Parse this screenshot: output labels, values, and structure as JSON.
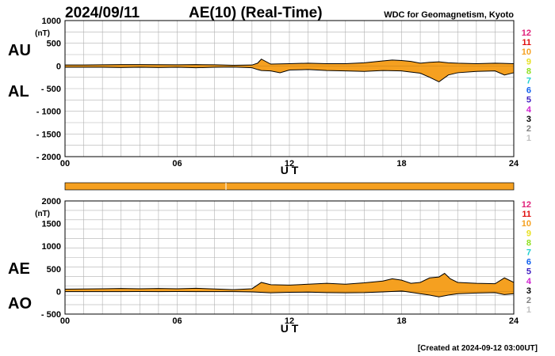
{
  "header": {
    "date": "2024/09/11",
    "title": "AE(10) (Real-Time)",
    "source": "WDC for Geomagnetism, Kyoto",
    "created": "[Created at 2024-09-12 03:00UT]"
  },
  "colors": {
    "fill": "#f5a020",
    "line": "#000000",
    "grid": "#b0b0b0",
    "bar": "#f5a020"
  },
  "station_legend": [
    {
      "label": "12",
      "color": "#e0207a"
    },
    {
      "label": "11",
      "color": "#e01010"
    },
    {
      "label": "10",
      "color": "#f5a020"
    },
    {
      "label": "9",
      "color": "#e8e020"
    },
    {
      "label": "8",
      "color": "#90e020"
    },
    {
      "label": "7",
      "color": "#20d0d0"
    },
    {
      "label": "6",
      "color": "#1060f0"
    },
    {
      "label": "5",
      "color": "#4020c0"
    },
    {
      "label": "4",
      "color": "#d020d0"
    },
    {
      "label": "3",
      "color": "#000000"
    },
    {
      "label": "2",
      "color": "#808080"
    },
    {
      "label": "1",
      "color": "#c0c0c0"
    }
  ],
  "chart_data": [
    {
      "type": "area",
      "name": "AU/AL",
      "label_upper": "AU",
      "label_lower": "AL",
      "unit": "(nT)",
      "xlabel": "U T",
      "xlim": [
        0,
        24
      ],
      "ylim": [
        -2000,
        1000
      ],
      "x_ticks": [
        0,
        6,
        12,
        18,
        24
      ],
      "x_tick_labels": [
        "00",
        "06",
        "12",
        "18",
        "24"
      ],
      "y_ticks": [
        1000,
        500,
        0,
        -500,
        -1000,
        -1500,
        -2000
      ],
      "y_tick_labels": [
        "1000",
        "500",
        "0",
        "- 500",
        "- 1000",
        "- 1500",
        "- 2000"
      ],
      "series": [
        {
          "name": "AU",
          "x": [
            0,
            1,
            2,
            3,
            4,
            5,
            6,
            7,
            8,
            9,
            10,
            10.3,
            10.5,
            11,
            12,
            13,
            14,
            15,
            16,
            17,
            17.5,
            18,
            18.5,
            19,
            19.5,
            20,
            20.5,
            21,
            22,
            23,
            24
          ],
          "values": [
            20,
            22,
            25,
            30,
            30,
            28,
            25,
            30,
            25,
            15,
            20,
            60,
            150,
            40,
            50,
            60,
            50,
            50,
            70,
            110,
            130,
            120,
            100,
            60,
            80,
            90,
            70,
            60,
            50,
            60,
            50
          ]
        },
        {
          "name": "AL",
          "x": [
            0,
            1,
            2,
            3,
            4,
            5,
            6,
            7,
            8,
            9,
            10,
            10.3,
            10.5,
            11,
            11.5,
            12,
            13,
            14,
            15,
            16,
            17,
            18,
            19,
            19.5,
            20,
            20.5,
            21,
            22,
            23,
            23.5,
            24
          ],
          "values": [
            -30,
            -30,
            -30,
            -35,
            -30,
            -35,
            -30,
            -40,
            -30,
            -25,
            -40,
            -80,
            -100,
            -110,
            -150,
            -90,
            -80,
            -100,
            -110,
            -120,
            -100,
            -110,
            -160,
            -250,
            -350,
            -200,
            -150,
            -120,
            -110,
            -200,
            -150
          ]
        }
      ]
    },
    {
      "type": "area",
      "name": "AE/AO",
      "label_upper": "AE",
      "label_lower": "AO",
      "unit": "(nT)",
      "xlabel": "U T",
      "xlim": [
        0,
        24
      ],
      "ylim": [
        -500,
        2000
      ],
      "x_ticks": [
        0,
        6,
        12,
        18,
        24
      ],
      "x_tick_labels": [
        "00",
        "06",
        "12",
        "18",
        "24"
      ],
      "y_ticks": [
        2000,
        1500,
        1000,
        500,
        0,
        -500
      ],
      "y_tick_labels": [
        "2000",
        "1500",
        "1000",
        "500",
        "0",
        "- 500"
      ],
      "series": [
        {
          "name": "AE",
          "x": [
            0,
            1,
            2,
            3,
            4,
            5,
            6,
            7,
            8,
            9,
            10,
            10.5,
            11,
            12,
            13,
            14,
            15,
            16,
            17,
            17.5,
            18,
            18.5,
            19,
            19.5,
            20,
            20.3,
            20.6,
            21,
            22,
            23,
            23.5,
            24
          ],
          "values": [
            50,
            55,
            60,
            65,
            60,
            65,
            60,
            70,
            55,
            40,
            60,
            200,
            150,
            140,
            160,
            180,
            160,
            190,
            230,
            280,
            250,
            180,
            200,
            300,
            320,
            400,
            280,
            200,
            180,
            170,
            300,
            200
          ]
        },
        {
          "name": "AO",
          "x": [
            0,
            1,
            2,
            3,
            4,
            5,
            6,
            7,
            8,
            9,
            10,
            11,
            12,
            13,
            14,
            15,
            16,
            17,
            18,
            19,
            19.5,
            20,
            20.5,
            21,
            22,
            23,
            23.5,
            24
          ],
          "values": [
            -5,
            -5,
            -3,
            -3,
            -2,
            -3,
            -2,
            -5,
            -3,
            -5,
            -10,
            -30,
            -20,
            -15,
            -25,
            -30,
            -25,
            -10,
            10,
            -50,
            -80,
            -120,
            -80,
            -50,
            -35,
            -25,
            -70,
            -50
          ]
        }
      ]
    }
  ]
}
